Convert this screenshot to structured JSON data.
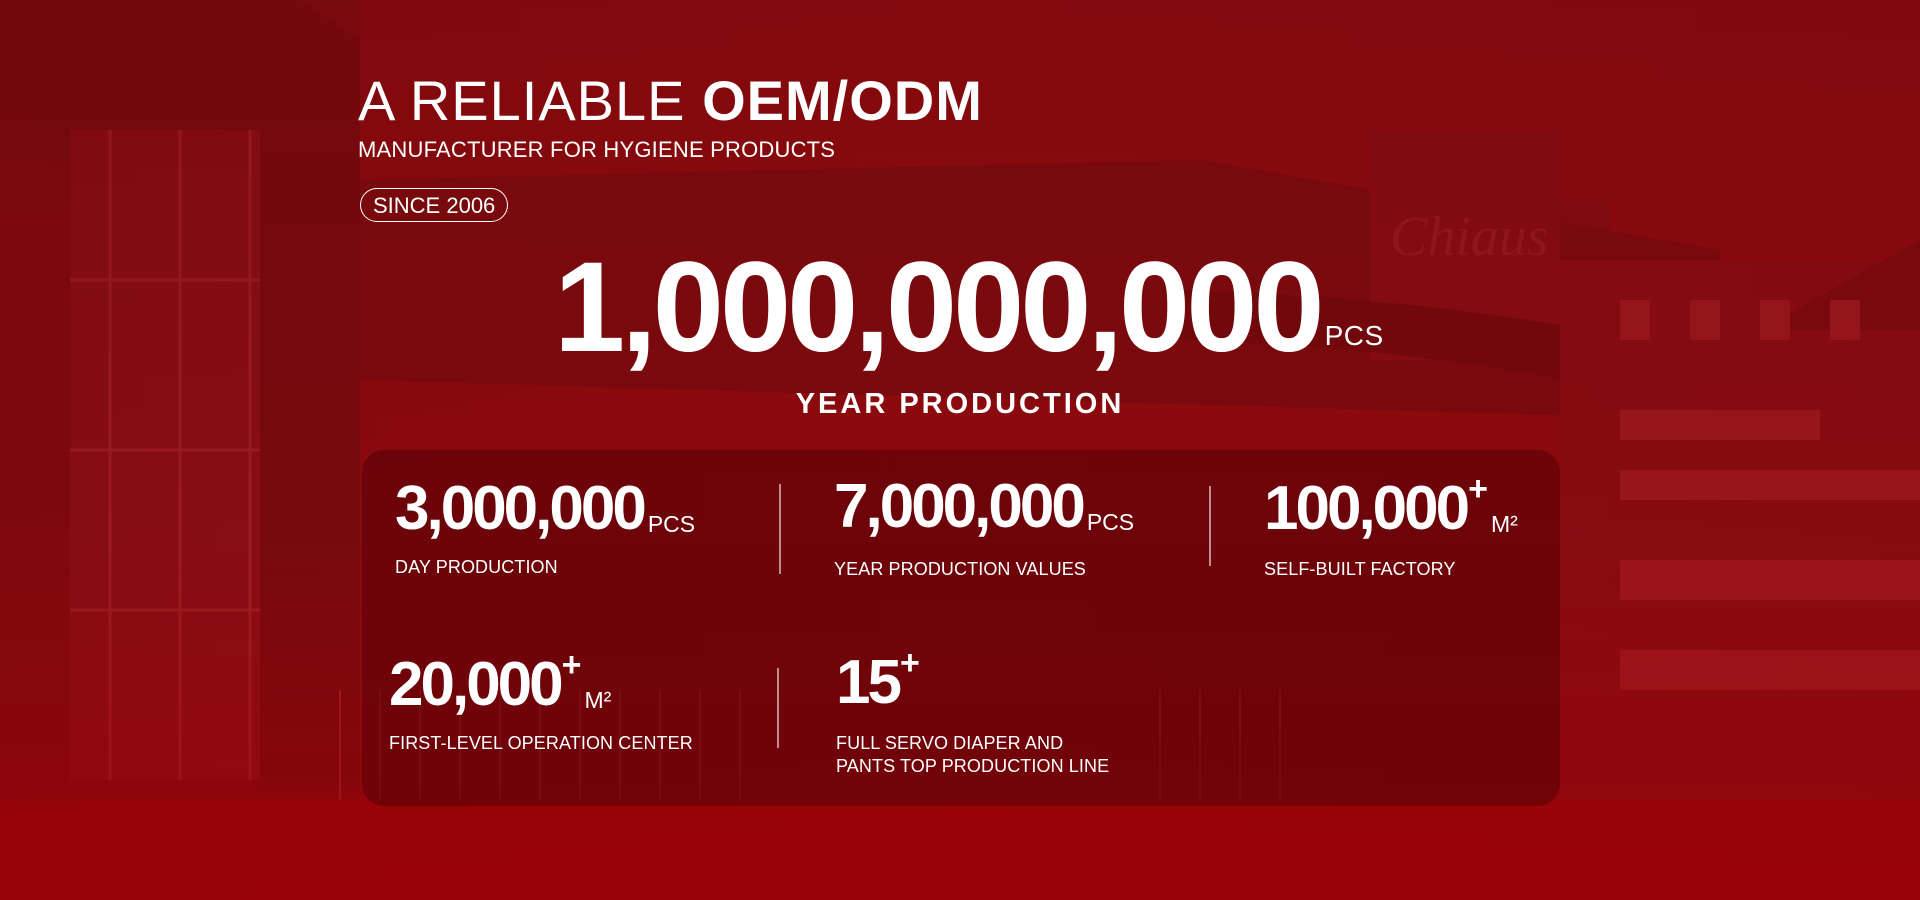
{
  "header": {
    "title_light": "A RELIABLE ",
    "title_bold": "OEM/ODM",
    "subtitle": "MANUFACTURER FOR HYGIENE PRODUCTS",
    "badge": "SINCE 2006"
  },
  "hero": {
    "value": "1,000,000,000",
    "unit": "PCS",
    "label": "YEAR PRODUCTION"
  },
  "stats": [
    {
      "value": "3,000,000",
      "plus": "",
      "unit": "PCS",
      "label_line1": "DAY PRODUCTION",
      "label_line2": ""
    },
    {
      "value": "7,000,000",
      "plus": "",
      "unit": "PCS",
      "label_line1": "YEAR PRODUCTION VALUES",
      "label_line2": ""
    },
    {
      "value": "100,000",
      "plus": "+",
      "unit": "M²",
      "label_line1": "SELF-BUILT FACTORY",
      "label_line2": ""
    },
    {
      "value": "20,000",
      "plus": "+",
      "unit": "M²",
      "label_line1": "FIRST-LEVEL OPERATION CENTER",
      "label_line2": ""
    },
    {
      "value": "15",
      "plus": "+",
      "unit": "",
      "label_line1": "FULL SERVO DIAPER AND",
      "label_line2": "PANTS TOP PRODUCTION LINE"
    }
  ],
  "colors": {
    "background": "#8e0a0e",
    "panel": "#480006",
    "text": "#ffffff"
  }
}
